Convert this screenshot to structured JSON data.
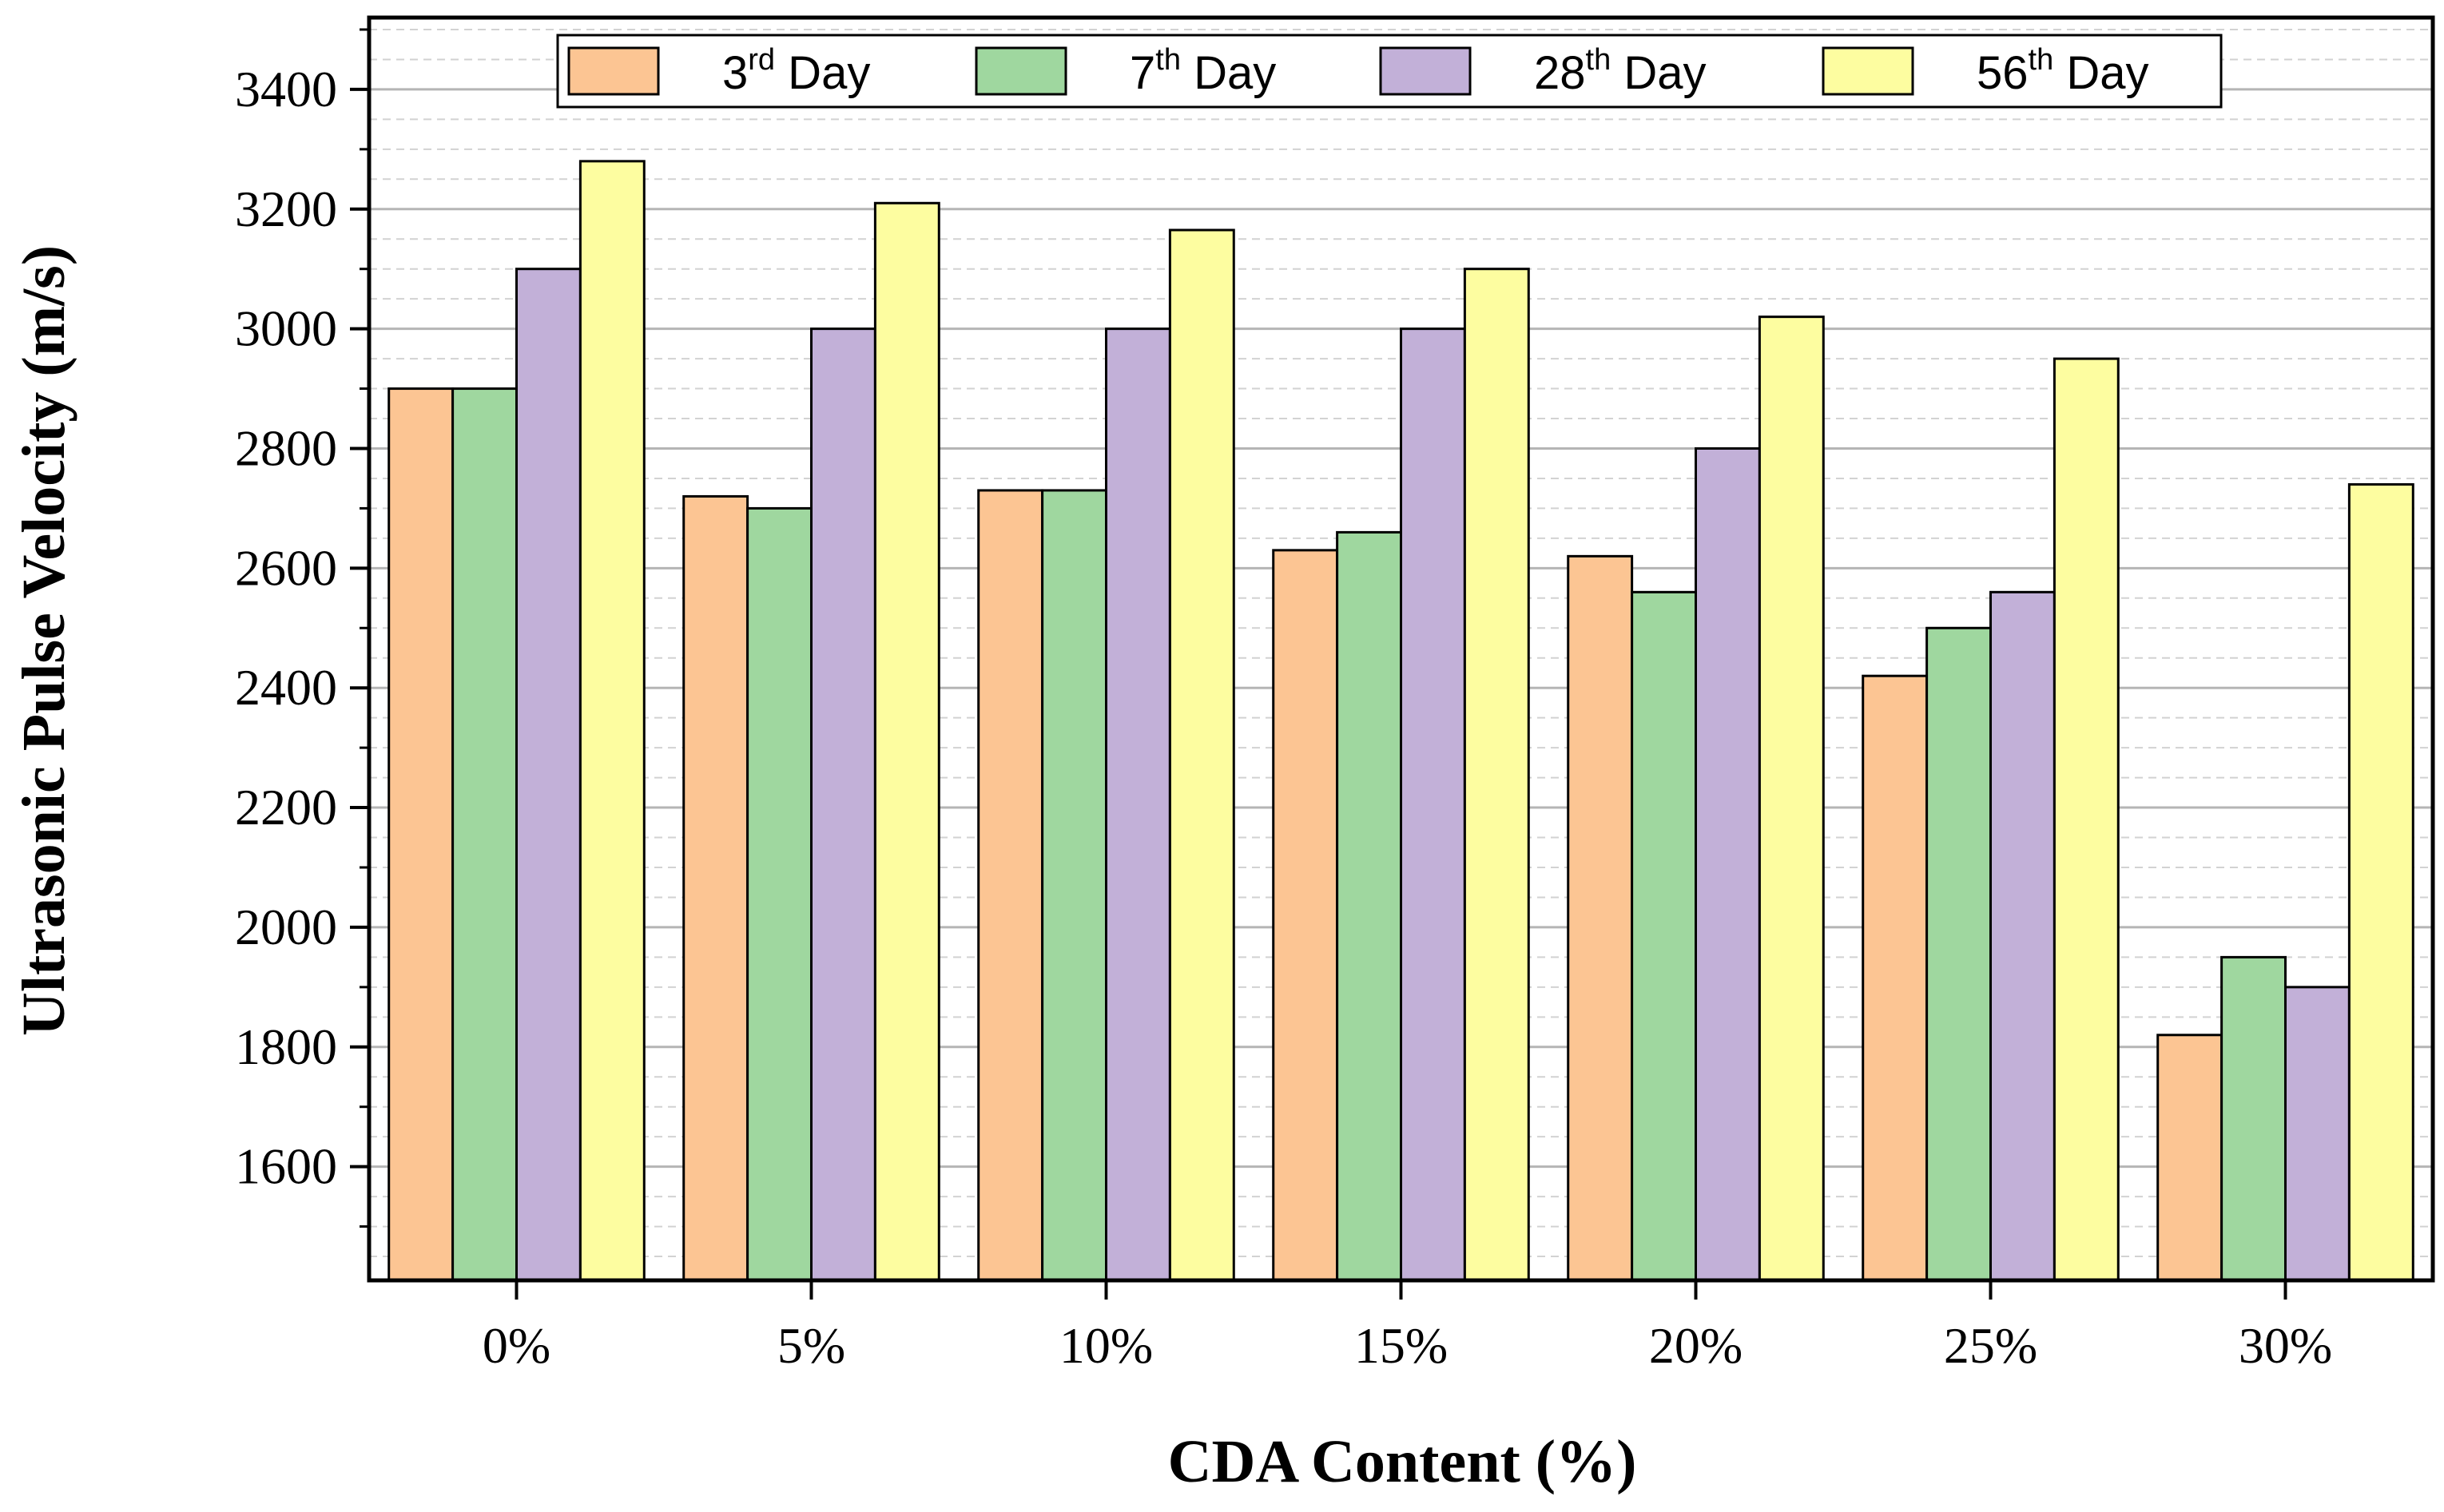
{
  "chart_data": {
    "type": "bar",
    "title": "",
    "xlabel": "CDA Content (%)",
    "ylabel": "Ultrasonic Pulse Velocity (m/s)",
    "categories": [
      "0%",
      "5%",
      "10%",
      "15%",
      "20%",
      "25%",
      "30%"
    ],
    "ylim": [
      1410,
      3520
    ],
    "yticks": [
      1600,
      1800,
      2000,
      2200,
      2400,
      2600,
      2800,
      3000,
      3200,
      3400
    ],
    "ytick_labels": [
      "1600",
      "1800",
      "2000",
      "2200",
      "2400",
      "2600",
      "2800",
      "3000",
      "3200",
      "3400"
    ],
    "grid": true,
    "legend_position": "top",
    "series": [
      {
        "name": "3rd Day",
        "base": "3",
        "sup": "rd",
        "rest": " Day",
        "color": "#FCC593",
        "values": [
          2900,
          2720,
          2730,
          2630,
          2620,
          2420,
          1820
        ]
      },
      {
        "name": "7th Day",
        "base": "7",
        "sup": "th",
        "rest": " Day",
        "color": "#9FD79F",
        "values": [
          2900,
          2700,
          2730,
          2660,
          2560,
          2500,
          1950
        ]
      },
      {
        "name": "28th Day",
        "base": "28",
        "sup": "th",
        "rest": " Day",
        "color": "#C2B0D8",
        "values": [
          3100,
          3000,
          3000,
          3000,
          2800,
          2560,
          1900
        ]
      },
      {
        "name": "56th Day",
        "base": "56",
        "sup": "th",
        "rest": " Day",
        "color": "#FDFDA0",
        "values": [
          3280,
          3210,
          3165,
          3100,
          3020,
          2950,
          2740
        ]
      }
    ]
  }
}
